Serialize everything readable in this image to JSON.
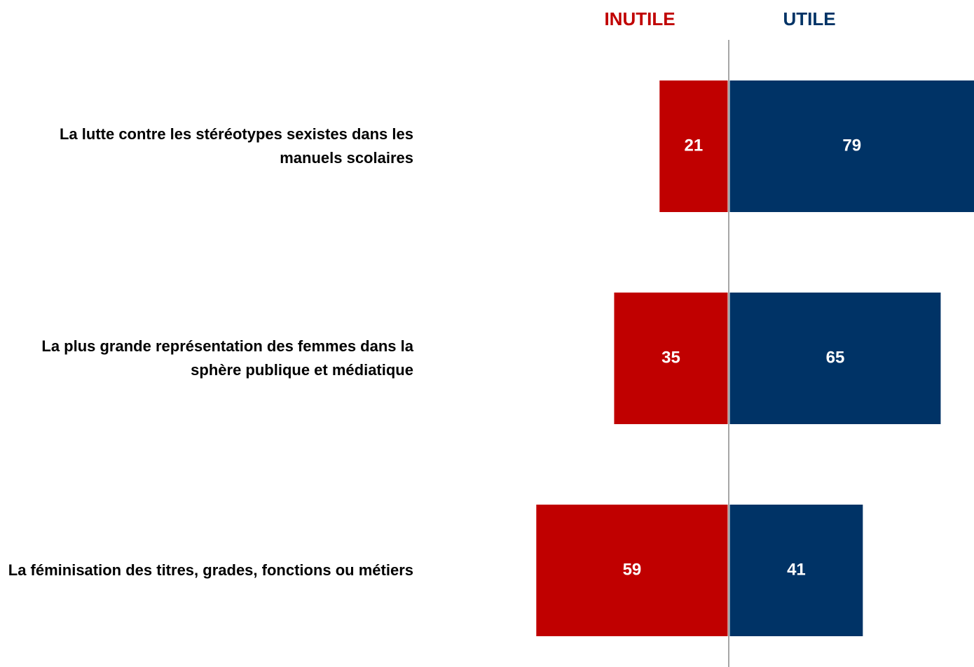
{
  "chart_data": {
    "type": "diverging_bar",
    "categories": [
      "La lutte contre les stéréotypes sexistes dans les manuels scolaires",
      "La plus grande représentation des femmes dans la sphère publique et médiatique",
      "La féminisation des titres, grades, fonctions ou métiers"
    ],
    "series": [
      {
        "name": "INUTILE",
        "color": "#c00000",
        "values": [
          21,
          35,
          59
        ]
      },
      {
        "name": "UTILE",
        "color": "#003366",
        "values": [
          79,
          65,
          41
        ]
      }
    ]
  }
}
